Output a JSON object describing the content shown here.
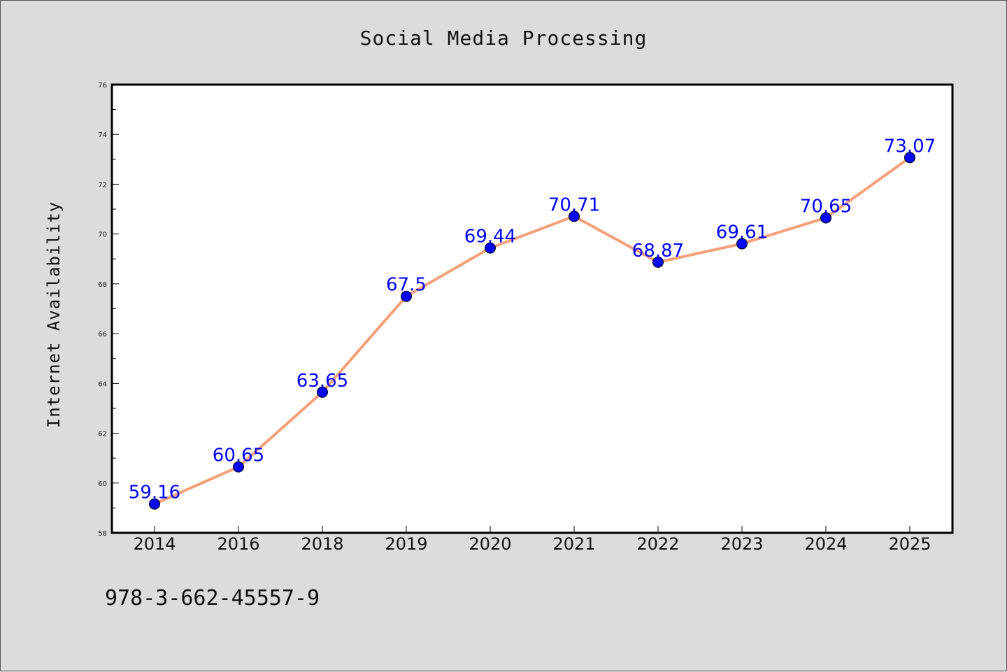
{
  "chart_data": {
    "type": "line",
    "title": "Social Media Processing",
    "xlabel": "",
    "ylabel": "Internet Availability",
    "categories": [
      "2014",
      "2016",
      "2018",
      "2019",
      "2020",
      "2021",
      "2022",
      "2023",
      "2024",
      "2025"
    ],
    "series": [
      {
        "values": [
          59.16,
          60.65,
          63.65,
          67.5,
          69.44,
          70.71,
          68.87,
          69.61,
          70.65,
          73.07
        ],
        "data_labels": [
          "59.16",
          "60.65",
          "63.65",
          "67.5",
          "69.44",
          "70.71",
          "68.87",
          "69.61",
          "70.65",
          "73.07"
        ],
        "line_color": "#f4a07a",
        "marker_color": "#0000ff"
      }
    ],
    "ylim": [
      58,
      76
    ],
    "yticks": [
      "58",
      "60",
      "62",
      "64",
      "66",
      "68",
      "70",
      "72",
      "74",
      "76"
    ],
    "grid": false,
    "legend": "none"
  },
  "footer": {
    "code": "978-3-662-45557-9"
  }
}
